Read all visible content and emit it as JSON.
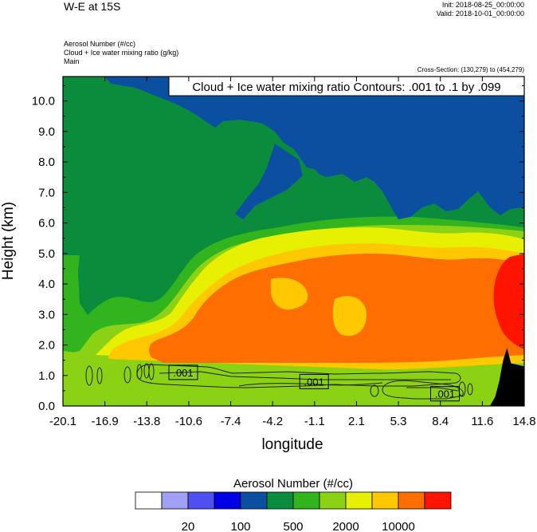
{
  "header": {
    "title": "W-E at 15S",
    "init": "Init: 2018-08-25_00:00:00",
    "valid": "Valid: 2018-10-01_00:00:00",
    "field_1": "Aerosol Number   (#/cc)",
    "field_2": "Cloud + Ice water mixing ratio   (g/kg)",
    "field_3": "Main",
    "cross_section": "Cross-Section: (130,279) to (454,279)"
  },
  "chart_data": {
    "type": "heatmap",
    "title": "W-E at 15S",
    "xlabel": "longitude",
    "ylabel": "Height (km)",
    "xlim": [
      -20.1,
      14.8
    ],
    "ylim": [
      0.0,
      10.8
    ],
    "x_ticks": [
      "-20.1",
      "-16.9",
      "-13.8",
      "-10.6",
      "-7.4",
      "-4.2",
      "-1.1",
      "2.1",
      "5.3",
      "8.4",
      "11.6",
      "14.8"
    ],
    "y_ticks": [
      "0.0",
      "1.0",
      "2.0",
      "3.0",
      "4.0",
      "5.0",
      "6.0",
      "7.0",
      "8.0",
      "9.0",
      "10.0"
    ],
    "contour_info": "Cloud + Ice water mixing ratio Contours: .001 to .1 by .099",
    "contour_labels": [
      ".001",
      ".001",
      ".001"
    ],
    "contour_label_x": [
      -11.0,
      -1.1,
      8.8
    ],
    "contour_label_y": [
      1.1,
      0.8,
      0.4
    ],
    "terrain": [
      [
        12.2,
        0.0
      ],
      [
        12.6,
        0.3
      ],
      [
        12.9,
        0.8
      ],
      [
        13.2,
        1.5
      ],
      [
        13.5,
        1.9
      ],
      [
        13.8,
        1.4
      ],
      [
        14.8,
        1.3
      ],
      [
        14.8,
        0.0
      ]
    ],
    "colorbar": {
      "title": "Aerosol Number  (#/cc)",
      "colors": [
        "#ffffff",
        "#a0a0f5",
        "#5050f0",
        "#0000e6",
        "#0a4fa0",
        "#0a8c3c",
        "#32b41e",
        "#8cd214",
        "#e6f000",
        "#ffc800",
        "#ff6e00",
        "#ff1400"
      ],
      "labels": [
        "20",
        "100",
        "500",
        "2000",
        "10000"
      ]
    }
  }
}
